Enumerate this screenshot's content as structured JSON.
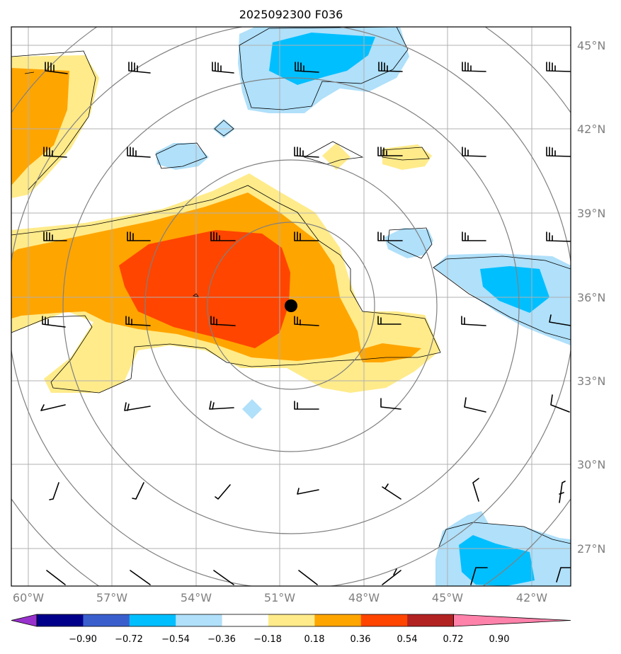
{
  "title": "2025092300 F036",
  "map": {
    "lon_range": [
      -61,
      -41
    ],
    "lat_range": [
      25.5,
      45.5
    ],
    "lon_ticks": [
      {
        "value": -60,
        "label": "60°W"
      },
      {
        "value": -57,
        "label": "57°W"
      },
      {
        "value": -54,
        "label": "54°W"
      },
      {
        "value": -51,
        "label": "51°W"
      },
      {
        "value": -48,
        "label": "48°W"
      },
      {
        "value": -45,
        "label": "45°W"
      },
      {
        "value": -42,
        "label": "42°W"
      }
    ],
    "lat_ticks": [
      {
        "value": 45,
        "label": "45°N"
      },
      {
        "value": 42,
        "label": "42°N"
      },
      {
        "value": 39,
        "label": "39°N"
      },
      {
        "value": 36,
        "label": "36°N"
      },
      {
        "value": 33,
        "label": "33°N"
      },
      {
        "value": 30,
        "label": "30°N"
      },
      {
        "value": 27,
        "label": "27°N"
      }
    ],
    "center": {
      "lon": -50.7,
      "lat": 35.6
    },
    "range_rings_deg": [
      3,
      5,
      8,
      10
    ],
    "grid": true
  },
  "colorbar": {
    "levels": [
      "−0.90",
      "−0.72",
      "−0.54",
      "−0.36",
      "−0.18",
      "0.18",
      "0.36",
      "0.54",
      "0.72",
      "0.90"
    ],
    "colors": [
      "#9932cc",
      "#00008b",
      "#3a5fcd",
      "#00bfff",
      "#b0e0fa",
      "#ffffff",
      "#ffeb8a",
      "#ffa500",
      "#ff4500",
      "#b22222",
      "#ff82ab"
    ]
  }
}
